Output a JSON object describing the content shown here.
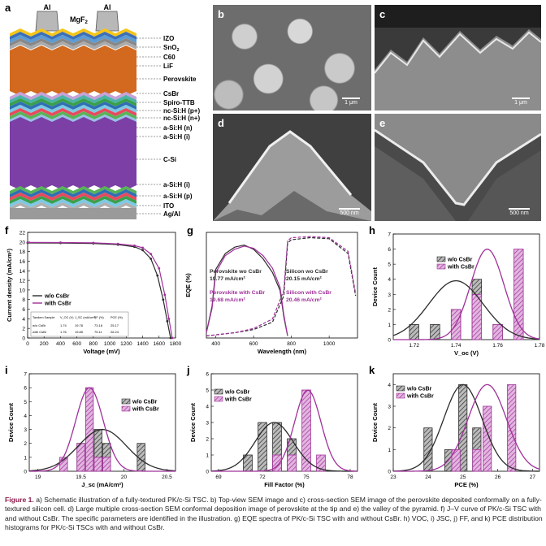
{
  "panels": {
    "a": "a",
    "b": "b",
    "c": "c",
    "d": "d",
    "e": "e",
    "f": "f",
    "g": "g",
    "h": "h",
    "i": "i",
    "j": "j",
    "k": "k"
  },
  "stack": {
    "contact_left": "Al",
    "contact_right": "Al",
    "mgf2": "MgF",
    "mgf2_sub": "2",
    "layers": [
      "IZO",
      "SnO",
      "C60",
      "LiF",
      "Perovskite",
      "CsBr",
      "Spiro-TTB",
      "nc-Si:H (p+)",
      "nc-Si:H (n+)",
      "a-Si:H (n)",
      "a-Si:H (i)",
      "C-Si",
      "a-Si:H (i)",
      "a-Si:H (p)",
      "ITO",
      "Ag/Al"
    ],
    "sno2_sub": "2"
  },
  "sem": {
    "b_scale": "1 μm",
    "c_scale": "1 μm",
    "d_scale": "500 nm",
    "e_scale": "500 nm"
  },
  "colors": {
    "black_series": "#2b2b2b",
    "purple_series": "#a0309a",
    "perovskite": "#d2691e",
    "csi": "#7b3fa6",
    "accent": "#8b1a4a"
  },
  "chart_data": [
    {
      "id": "f",
      "type": "line",
      "xlabel": "Voltage (mV)",
      "ylabel": "Current density (mA/cm²)",
      "xlim": [
        0,
        1800
      ],
      "ylim": [
        0,
        22
      ],
      "xticks": [
        "0",
        "200",
        "400",
        "600",
        "800",
        "1000",
        "1200",
        "1400",
        "1600",
        "1800"
      ],
      "yticks": [
        "0",
        "2",
        "4",
        "6",
        "8",
        "10",
        "12",
        "14",
        "16",
        "18",
        "20",
        "22"
      ],
      "series": [
        {
          "name": "w/o CsBr",
          "x": [
            0,
            400,
            800,
            1100,
            1300,
            1400,
            1500,
            1580,
            1650,
            1700,
            1740
          ],
          "y": [
            19.8,
            19.78,
            19.7,
            19.45,
            19.0,
            18.3,
            16.5,
            13.0,
            8.0,
            3.5,
            0
          ]
        },
        {
          "name": "with CsBr",
          "x": [
            0,
            400,
            800,
            1100,
            1300,
            1400,
            1500,
            1600,
            1670,
            1720,
            1760
          ],
          "y": [
            19.9,
            19.88,
            19.82,
            19.6,
            19.25,
            18.8,
            17.5,
            14.5,
            9.0,
            4.0,
            0
          ]
        }
      ],
      "legend": [
        "w/o CsBr",
        "with CsBr"
      ],
      "table": {
        "headers": [
          "Tandem Sample",
          "V_OC (V)",
          "J_SC (mA/cm²)",
          "FF (%)",
          "PCE (%)"
        ],
        "rows": [
          [
            "w/o CsBr",
            "1.74",
            "19.78",
            "73.18",
            "25.17"
          ],
          [
            "with CsBr",
            "1.76",
            "19.85",
            "75.11",
            "26.24"
          ]
        ]
      }
    },
    {
      "id": "g",
      "type": "line",
      "xlabel": "Wavelength (nm)",
      "ylabel": "EQE (%)",
      "xlim": [
        350,
        1150
      ],
      "ylim": [
        0,
        100
      ],
      "xticks": [
        "400",
        "600",
        "800",
        "1000"
      ],
      "series": [
        {
          "name": "Perovskite wo CsBr",
          "x": [
            350,
            380,
            400,
            450,
            500,
            550,
            600,
            650,
            700,
            740,
            760,
            780
          ],
          "y": [
            5,
            30,
            65,
            80,
            86,
            88,
            84,
            75,
            62,
            45,
            20,
            2
          ]
        },
        {
          "name": "Perovskite with CsBr",
          "x": [
            350,
            380,
            400,
            450,
            500,
            550,
            600,
            650,
            700,
            740,
            760,
            780
          ],
          "y": [
            5,
            28,
            62,
            78,
            84,
            87,
            85,
            78,
            66,
            48,
            22,
            2
          ]
        },
        {
          "name": "Silicon wo CsBr",
          "x": [
            350,
            400,
            500,
            600,
            700,
            760,
            780,
            800,
            900,
            1000,
            1100,
            1140
          ],
          "y": [
            2,
            3,
            5,
            8,
            15,
            40,
            90,
            93,
            95,
            94,
            80,
            40
          ]
        },
        {
          "name": "Silicon with CsBr",
          "x": [
            350,
            400,
            500,
            600,
            700,
            760,
            780,
            800,
            900,
            1000,
            1100,
            1140
          ],
          "y": [
            2,
            3,
            5,
            9,
            18,
            45,
            92,
            95,
            96,
            95,
            82,
            42
          ]
        }
      ],
      "annotations": [
        "Perovskite wo CsBr",
        "19.77 mA/cm²",
        "Perovskite with CsBr",
        "19.68 mA/cm²",
        "Silicon wo CsBr",
        "20.15 mA/cm²",
        "Silicon with CsBr",
        "20.46 mA/cm²"
      ]
    },
    {
      "id": "h",
      "type": "bar",
      "xlabel": "V_oc (V)",
      "ylabel": "Device Count",
      "xlim": [
        1.71,
        1.78
      ],
      "ylim": [
        0,
        7
      ],
      "xticks": [
        "1.72",
        "1.74",
        "1.76",
        "1.78"
      ],
      "yticks": [
        "0",
        "1",
        "2",
        "3",
        "4",
        "5",
        "6",
        "7"
      ],
      "legend": [
        "w/o CsBr",
        "with CsBr"
      ],
      "series": [
        {
          "name": "w/o CsBr",
          "x": [
            1.72,
            1.73,
            1.74,
            1.75,
            1.76
          ],
          "values": [
            1,
            1,
            2,
            4,
            1
          ]
        },
        {
          "name": "with CsBr",
          "x": [
            1.74,
            1.75,
            1.76,
            1.77
          ],
          "values": [
            2,
            3,
            1,
            6
          ]
        }
      ]
    },
    {
      "id": "i",
      "type": "bar",
      "xlabel": "J_sc (mA/cm²)",
      "ylabel": "Device Count",
      "xlim": [
        18.9,
        20.6
      ],
      "ylim": [
        0,
        7
      ],
      "xticks": [
        "19",
        "19.5",
        "20",
        "20.5"
      ],
      "yticks": [
        "0",
        "1",
        "2",
        "3",
        "4",
        "5",
        "6",
        "7"
      ],
      "legend": [
        "w/o CsBr",
        "with CsBr"
      ],
      "series": [
        {
          "name": "w/o CsBr",
          "x": [
            19.5,
            19.6,
            19.7,
            19.8,
            20.2
          ],
          "values": [
            2,
            2,
            3,
            2,
            2
          ]
        },
        {
          "name": "with CsBr",
          "x": [
            19.3,
            19.5,
            19.6,
            19.7,
            19.8
          ],
          "values": [
            1,
            2,
            6,
            1,
            1
          ]
        }
      ]
    },
    {
      "id": "j",
      "type": "bar",
      "xlabel": "Fill Factor (%)",
      "ylabel": "Device Count",
      "xlim": [
        68.5,
        78.5
      ],
      "ylim": [
        0,
        6
      ],
      "xticks": [
        "69",
        "72",
        "75",
        "78"
      ],
      "yticks": [
        "0",
        "1",
        "2",
        "3",
        "4",
        "5",
        "6"
      ],
      "legend": [
        "w/o CsBr",
        "with CsBr"
      ],
      "series": [
        {
          "name": "w/o CsBr",
          "x": [
            71,
            72,
            73,
            74
          ],
          "values": [
            1,
            3,
            3,
            2
          ]
        },
        {
          "name": "with CsBr",
          "x": [
            73,
            74,
            75,
            76
          ],
          "values": [
            1,
            1,
            5,
            1
          ]
        }
      ]
    },
    {
      "id": "k",
      "type": "bar",
      "xlabel": "PCE (%)",
      "ylabel": "Device Count",
      "xlim": [
        23,
        27.2
      ],
      "ylim": [
        0,
        4.5
      ],
      "xticks": [
        "23",
        "24",
        "25",
        "26",
        "27"
      ],
      "yticks": [
        "0",
        "1",
        "2",
        "3",
        "4"
      ],
      "legend": [
        "w/o CsBr",
        "with CsBr"
      ],
      "series": [
        {
          "name": "w/o CsBr",
          "x": [
            24,
            24.6,
            25,
            25.4
          ],
          "values": [
            2,
            1,
            4,
            2
          ]
        },
        {
          "name": "with CsBr",
          "x": [
            24.8,
            25.4,
            25.7,
            26.4
          ],
          "values": [
            1,
            1,
            3,
            4
          ]
        }
      ]
    }
  ],
  "caption": {
    "label": "Figure 1.",
    "text": "a) Schematic illustration of a fully-textured PK/c-Si TSC. b) Top-view SEM image and c) cross-section SEM image of the perovskite deposited conformally on a fully-textured silicon cell. d) Large multiple cross-section SEM conformal deposition image of perovskite at the tip and e) the valley of the pyramid. f) J–V curve of PK/c-Si TSC with and without CsBr. The specific parameters are identified in the illustration. g) EQE spectra of PK/c-Si TSC with and without CsBr. h) VOC, i) JSC, j) FF, and k) PCE distribution histograms for PK/c-Si TSCs with and without CsBr."
  }
}
